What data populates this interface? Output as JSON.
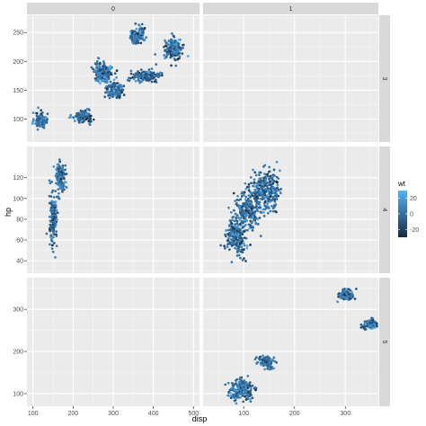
{
  "chart_data": {
    "type": "scatter",
    "title": "",
    "xlabel": "disp",
    "ylabel": "hp",
    "facet_cols": [
      "0",
      "1"
    ],
    "facet_rows": [
      "3",
      "4",
      "5"
    ],
    "grid": true,
    "legend": {
      "title": "wt",
      "placement": "right",
      "ticks": [
        20,
        0,
        -20
      ],
      "range": [
        -30,
        30
      ],
      "low_color": "#132b43",
      "high_color": "#56b1f7"
    },
    "axes": {
      "col0": {
        "xlim": [
          85,
          515
        ],
        "xticks": [
          100,
          200,
          300,
          400,
          500
        ]
      },
      "col1": {
        "xlim": [
          20,
          365
        ],
        "xticks": [
          100,
          200,
          300
        ]
      },
      "row3": {
        "ylim": [
          60,
          280
        ],
        "yticks": [
          100,
          150,
          200,
          250
        ]
      },
      "row4": {
        "ylim": [
          28,
          150
        ],
        "yticks": [
          40,
          60,
          80,
          100,
          120
        ]
      },
      "row5": {
        "ylim": [
          70,
          375
        ],
        "yticks": [
          100,
          200,
          300
        ]
      }
    },
    "clusters": [
      {
        "col": "0",
        "row": "3",
        "cx": 120.1,
        "cy": 97,
        "sx": 8,
        "sy": 7,
        "n": 100
      },
      {
        "col": "0",
        "row": "3",
        "cx": 225,
        "cy": 105,
        "sx": 12,
        "sy": 6,
        "n": 120
      },
      {
        "col": "0",
        "row": "3",
        "cx": 275.8,
        "cy": 180,
        "sx": 11,
        "sy": 9,
        "n": 200
      },
      {
        "col": "0",
        "row": "3",
        "cx": 304,
        "cy": 150,
        "sx": 10,
        "sy": 7,
        "n": 130
      },
      {
        "col": "0",
        "row": "3",
        "cx": 360,
        "cy": 245,
        "sx": 9,
        "sy": 7,
        "n": 130
      },
      {
        "col": "0",
        "row": "3",
        "cx": 380,
        "cy": 175,
        "sx": 16,
        "sy": 5,
        "n": 170
      },
      {
        "col": "0",
        "row": "3",
        "cx": 450,
        "cy": 220,
        "sx": 11,
        "sy": 9,
        "n": 190
      },
      {
        "col": "0",
        "row": "4",
        "cx": 150,
        "cy": 80,
        "sx": 5,
        "sy": 14,
        "n": 160
      },
      {
        "col": "0",
        "row": "4",
        "cx": 168,
        "cy": 120,
        "sx": 6,
        "sy": 8,
        "n": 140
      },
      {
        "col": "1",
        "row": "4",
        "cx": 85,
        "cy": 65,
        "sx": 10,
        "sy": 10,
        "n": 220
      },
      {
        "col": "1",
        "row": "4",
        "cx": 110,
        "cy": 90,
        "sx": 12,
        "sy": 10,
        "n": 220
      },
      {
        "col": "1",
        "row": "4",
        "cx": 140,
        "cy": 110,
        "sx": 12,
        "sy": 8,
        "n": 170
      },
      {
        "col": "1",
        "row": "4",
        "cx": 155,
        "cy": 105,
        "sx": 8,
        "sy": 10,
        "n": 100
      },
      {
        "col": "1",
        "row": "5",
        "cx": 95,
        "cy": 110,
        "sx": 12,
        "sy": 12,
        "n": 200
      },
      {
        "col": "1",
        "row": "5",
        "cx": 145,
        "cy": 175,
        "sx": 8,
        "sy": 8,
        "n": 90
      },
      {
        "col": "1",
        "row": "5",
        "cx": 301,
        "cy": 335,
        "sx": 8,
        "sy": 6,
        "n": 100
      },
      {
        "col": "1",
        "row": "5",
        "cx": 350,
        "cy": 264,
        "sx": 7,
        "sy": 6,
        "n": 90
      }
    ]
  }
}
